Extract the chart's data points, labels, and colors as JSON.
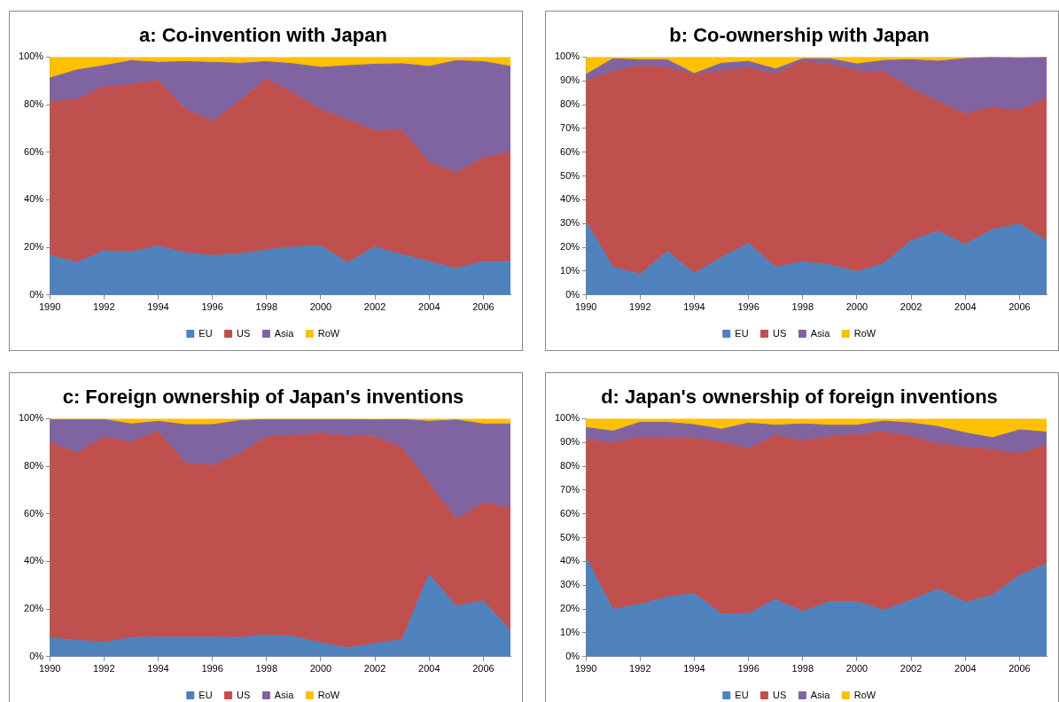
{
  "chart_data": [
    {
      "type": "area",
      "title": "a: Co-invention with Japan",
      "stacked": true,
      "legend": "bottom",
      "grid": false,
      "x": [
        1990,
        1991,
        1992,
        1993,
        1994,
        1995,
        1996,
        1997,
        1998,
        1999,
        2000,
        2001,
        2002,
        2003,
        2004,
        2005,
        2006,
        2007
      ],
      "xlim": [
        1990,
        2007
      ],
      "xticks": [
        1990,
        1992,
        1994,
        1996,
        1998,
        2000,
        2002,
        2004,
        2006
      ],
      "ylim": [
        0,
        100
      ],
      "yticks": [
        {
          "value": 0,
          "label": "0%"
        },
        {
          "value": 20,
          "label": "20%"
        },
        {
          "value": 40,
          "label": "40%"
        },
        {
          "value": 60,
          "label": "60%"
        },
        {
          "value": 80,
          "label": "80%"
        },
        {
          "value": 100,
          "label": "100%"
        }
      ],
      "series": [
        {
          "name": "EU",
          "color": "#4f81bd",
          "values": [
            16.8,
            13.6,
            18.6,
            18,
            20.6,
            17.7,
            16.6,
            17.2,
            19,
            20.2,
            20.6,
            13.6,
            20.2,
            17,
            14,
            11.1,
            14,
            14
          ]
        },
        {
          "name": "US",
          "color": "#c0504d",
          "values": [
            64.5,
            68.5,
            68.9,
            70.6,
            69.6,
            60.6,
            56.3,
            64.2,
            71.9,
            64.7,
            57.3,
            60,
            48.9,
            52.5,
            41.7,
            40.3,
            43.6,
            46.1
          ]
        },
        {
          "name": "Asia",
          "color": "#8064a2",
          "values": [
            9.9,
            12.5,
            8.9,
            9.9,
            7.6,
            19.8,
            24.9,
            16,
            7.2,
            12.3,
            17.8,
            22.8,
            27.9,
            27.7,
            40.4,
            47.1,
            40.5,
            36
          ]
        },
        {
          "name": "RoW",
          "color": "#ffc000",
          "values": [
            8.8,
            5.4,
            3.6,
            1.5,
            2.2,
            1.9,
            2.2,
            2.6,
            1.9,
            2.8,
            4.3,
            3.6,
            3,
            2.8,
            3.9,
            1.5,
            1.9,
            3.9
          ]
        }
      ]
    },
    {
      "type": "area",
      "title": "b: Co-ownership with Japan",
      "stacked": true,
      "legend": "bottom",
      "grid": false,
      "x": [
        1990,
        1991,
        1992,
        1993,
        1994,
        1995,
        1996,
        1997,
        1998,
        1999,
        2000,
        2001,
        2002,
        2003,
        2004,
        2005,
        2006,
        2007
      ],
      "xlim": [
        1990,
        2007
      ],
      "xticks": [
        1990,
        1992,
        1994,
        1996,
        1998,
        2000,
        2002,
        2004,
        2006
      ],
      "ylim": [
        0,
        100
      ],
      "yticks": [
        {
          "value": 0,
          "label": "0%"
        },
        {
          "value": 10,
          "label": "10%"
        },
        {
          "value": 20,
          "label": "20%"
        },
        {
          "value": 30,
          "label": "30%"
        },
        {
          "value": 40,
          "label": "40%"
        },
        {
          "value": 50,
          "label": "50%"
        },
        {
          "value": 60,
          "label": "60%"
        },
        {
          "value": 70,
          "label": "70%"
        },
        {
          "value": 80,
          "label": "80%"
        },
        {
          "value": 90,
          "label": "90%"
        },
        {
          "value": 100,
          "label": "100%"
        }
      ],
      "series": [
        {
          "name": "EU",
          "color": "#4f81bd",
          "values": [
            30.8,
            11.7,
            8.7,
            18.3,
            9.1,
            15.7,
            21.7,
            11.7,
            14,
            12.7,
            9.8,
            13.2,
            22.8,
            26.8,
            21.3,
            27.5,
            29.8,
            22.8
          ]
        },
        {
          "name": "US",
          "color": "#c0504d",
          "values": [
            59.3,
            82.1,
            87.6,
            77.3,
            83.7,
            78.5,
            73.9,
            81.1,
            84.2,
            84.3,
            84.4,
            80.6,
            64.1,
            54.4,
            54.8,
            51.5,
            47.8,
            60
          ]
        },
        {
          "name": "Asia",
          "color": "#8064a2",
          "values": [
            2.6,
            5.5,
            2.6,
            3.3,
            0.3,
            3.2,
            2.6,
            2.2,
            1.1,
            2.3,
            2.9,
            4.8,
            12,
            17.1,
            23.3,
            21,
            22.1,
            17.2
          ]
        },
        {
          "name": "RoW",
          "color": "#ffc000",
          "values": [
            7.3,
            0.7,
            1.1,
            1.1,
            6.9,
            2.6,
            1.8,
            5,
            0.7,
            0.7,
            2.9,
            1.4,
            1.1,
            1.7,
            0.6,
            0,
            0.3,
            0
          ]
        }
      ]
    },
    {
      "type": "area",
      "title": "c: Foreign ownership of Japan's inventions",
      "stacked": true,
      "legend": "bottom",
      "grid": false,
      "x": [
        1990,
        1991,
        1992,
        1993,
        1994,
        1995,
        1996,
        1997,
        1998,
        1999,
        2000,
        2001,
        2002,
        2003,
        2004,
        2005,
        2006,
        2007
      ],
      "xlim": [
        1990,
        2007
      ],
      "xticks": [
        1990,
        1992,
        1994,
        1996,
        1998,
        2000,
        2002,
        2004,
        2006
      ],
      "ylim": [
        0,
        100
      ],
      "yticks": [
        {
          "value": 0,
          "label": "0%"
        },
        {
          "value": 20,
          "label": "20%"
        },
        {
          "value": 40,
          "label": "40%"
        },
        {
          "value": 60,
          "label": "60%"
        },
        {
          "value": 80,
          "label": "80%"
        },
        {
          "value": 100,
          "label": "100%"
        }
      ],
      "series": [
        {
          "name": "EU",
          "color": "#4f81bd",
          "values": [
            7.8,
            6.9,
            5.9,
            8,
            8.2,
            8.2,
            8.2,
            8,
            9.1,
            8.5,
            5.8,
            3.7,
            5.5,
            7.1,
            34.6,
            21.3,
            23.4,
            11
          ]
        },
        {
          "name": "US",
          "color": "#c0504d",
          "values": [
            82.4,
            78.7,
            86.4,
            82.2,
            86.6,
            73.1,
            72.2,
            77.2,
            83.2,
            84.4,
            88.2,
            88.9,
            86.9,
            80.8,
            38.2,
            36.4,
            41.2,
            51.6
          ]
        },
        {
          "name": "Asia",
          "color": "#8064a2",
          "values": [
            9.5,
            14.1,
            7.4,
            7.6,
            4.1,
            16.2,
            17.1,
            14,
            7.4,
            6.8,
            5.7,
            7.1,
            7.1,
            11.8,
            26.1,
            41.8,
            33.2,
            35.2
          ]
        },
        {
          "name": "RoW",
          "color": "#ffc000",
          "values": [
            0.3,
            0.3,
            0.3,
            2.2,
            1.1,
            2.5,
            2.5,
            0.8,
            0.3,
            0.3,
            0.3,
            0.3,
            0.5,
            0.3,
            1.1,
            0.5,
            2.2,
            2.2
          ]
        }
      ]
    },
    {
      "type": "area",
      "title": "d: Japan's ownership of foreign inventions",
      "stacked": true,
      "legend": "bottom",
      "grid": false,
      "x": [
        1990,
        1991,
        1992,
        1993,
        1994,
        1995,
        1996,
        1997,
        1998,
        1999,
        2000,
        2001,
        2002,
        2003,
        2004,
        2005,
        2006,
        2007
      ],
      "xlim": [
        1990,
        2007
      ],
      "xticks": [
        1990,
        1992,
        1994,
        1996,
        1998,
        2000,
        2002,
        2004,
        2006
      ],
      "ylim": [
        0,
        100
      ],
      "yticks": [
        {
          "value": 0,
          "label": "0%"
        },
        {
          "value": 10,
          "label": "10%"
        },
        {
          "value": 20,
          "label": "20%"
        },
        {
          "value": 30,
          "label": "30%"
        },
        {
          "value": 40,
          "label": "40%"
        },
        {
          "value": 50,
          "label": "50%"
        },
        {
          "value": 60,
          "label": "60%"
        },
        {
          "value": 70,
          "label": "70%"
        },
        {
          "value": 80,
          "label": "80%"
        },
        {
          "value": 90,
          "label": "90%"
        },
        {
          "value": 100,
          "label": "100%"
        }
      ],
      "series": [
        {
          "name": "EU",
          "color": "#4f81bd",
          "values": [
            41.5,
            19.8,
            22,
            25,
            26.6,
            17.9,
            18.1,
            24,
            19,
            23.1,
            23.1,
            19.5,
            23.8,
            28.3,
            22.8,
            25.7,
            34.1,
            39
          ]
        },
        {
          "name": "US",
          "color": "#c0504d",
          "values": [
            49.7,
            70,
            70.2,
            66.9,
            65.3,
            72.2,
            69.3,
            69.1,
            71.7,
            69.5,
            70.3,
            75,
            68.8,
            61.1,
            65.3,
            61.3,
            51.2,
            50
          ]
        },
        {
          "name": "Asia",
          "color": "#8064a2",
          "values": [
            5.1,
            5,
            6.3,
            6.6,
            5.6,
            5.5,
            10.8,
            4.2,
            7.1,
            4.7,
            3.9,
            4.5,
            5.6,
            7.3,
            6,
            5,
            10,
            5.4
          ]
        },
        {
          "name": "RoW",
          "color": "#ffc000",
          "values": [
            3.7,
            5.2,
            1.5,
            1.5,
            2.5,
            4.4,
            1.8,
            2.7,
            2.2,
            2.7,
            2.7,
            1,
            1.8,
            3.3,
            5.9,
            8,
            4.7,
            5.6
          ]
        }
      ]
    }
  ]
}
